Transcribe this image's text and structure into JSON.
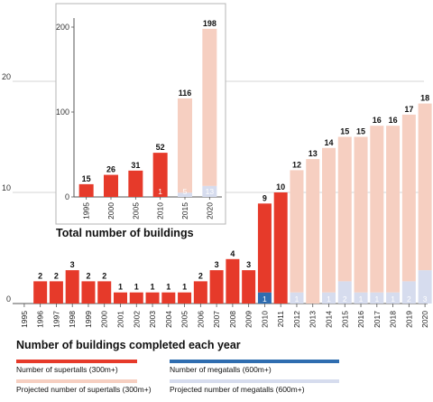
{
  "colors": {
    "supertall": "#e63a2a",
    "projected_supertall": "#f6cfc1",
    "megatall": "#2f6db0",
    "projected_megatall": "#d6dcee",
    "grid": "#c8c8c8"
  },
  "chart_data": [
    {
      "type": "bar",
      "caption": "Number of buildings completed each year",
      "ylim": [
        0,
        22
      ],
      "yticks": [
        0,
        10,
        20
      ],
      "grid": true,
      "x": [
        "1995",
        "1996",
        "1997",
        "1998",
        "1999",
        "2000",
        "2001",
        "2002",
        "2003",
        "2004",
        "2005",
        "2006",
        "2007",
        "2008",
        "2009",
        "2010",
        "2011",
        "2012",
        "2013",
        "2014",
        "2015",
        "2016",
        "2017",
        "2018",
        "2019",
        "2020"
      ],
      "series": [
        {
          "name": "Number of supertalls (300m+)",
          "values": [
            0,
            2,
            2,
            3,
            2,
            2,
            1,
            1,
            1,
            1,
            1,
            2,
            3,
            4,
            3,
            9,
            10,
            0,
            0,
            0,
            0,
            0,
            0,
            0,
            0,
            0
          ]
        },
        {
          "name": "Projected number of supertalls (300m+)",
          "values": [
            0,
            0,
            0,
            0,
            0,
            0,
            0,
            0,
            0,
            0,
            0,
            0,
            0,
            0,
            0,
            0,
            0,
            12,
            13,
            14,
            15,
            15,
            16,
            16,
            17,
            18
          ]
        },
        {
          "name": "Number of megatalls (600m+)",
          "values": [
            0,
            0,
            0,
            0,
            0,
            0,
            0,
            0,
            0,
            0,
            0,
            0,
            0,
            0,
            0,
            1,
            0,
            0,
            0,
            0,
            0,
            0,
            0,
            0,
            0,
            0
          ]
        },
        {
          "name": "Projected number of megatalls (600m+)",
          "values": [
            0,
            0,
            0,
            0,
            0,
            0,
            0,
            0,
            0,
            0,
            0,
            0,
            0,
            0,
            0,
            0,
            0,
            1,
            0,
            1,
            2,
            1,
            1,
            1,
            2,
            3
          ]
        }
      ],
      "top_labels": [
        "",
        "2",
        "2",
        "3",
        "2",
        "2",
        "1",
        "1",
        "1",
        "1",
        "1",
        "2",
        "3",
        "4",
        "3",
        "9",
        "10",
        "12",
        "13",
        "14",
        "15",
        "15",
        "16",
        "16",
        "17",
        "18"
      ],
      "inner_labels": [
        "",
        "",
        "",
        "",
        "",
        "",
        "",
        "",
        "",
        "",
        "",
        "",
        "",
        "",
        "",
        "1",
        "",
        "1",
        "",
        "1",
        "2",
        "1",
        "1",
        "1",
        "2",
        "3"
      ]
    },
    {
      "type": "bar",
      "caption": "Total number of buildings",
      "ylim": [
        0,
        210
      ],
      "yticks": [
        0,
        100,
        200
      ],
      "grid": false,
      "categories": [
        "1995",
        "2000",
        "2005",
        "2010",
        "2015",
        "2020"
      ],
      "series": [
        {
          "name": "Number of supertalls (300m+)",
          "values": [
            15,
            26,
            31,
            52,
            0,
            0
          ]
        },
        {
          "name": "Projected number of supertalls (300m+)",
          "values": [
            0,
            0,
            0,
            0,
            116,
            198
          ]
        },
        {
          "name": "Number of megatalls (600m+)",
          "values": [
            0,
            0,
            0,
            1,
            0,
            0
          ]
        },
        {
          "name": "Projected number of megatalls (600m+)",
          "values": [
            0,
            0,
            0,
            0,
            5,
            13
          ]
        }
      ],
      "top_labels": [
        "15",
        "26",
        "31",
        "52",
        "116",
        "198"
      ],
      "inner_labels": [
        "",
        "",
        "",
        "1",
        "5",
        "13"
      ]
    }
  ],
  "legend": [
    {
      "label": "Number of supertalls (300m+)",
      "color_key": "supertall"
    },
    {
      "label": "Number of megatalls (600m+)",
      "color_key": "megatall"
    },
    {
      "label": "Projected number of supertalls (300m+)",
      "color_key": "projected_supertall"
    },
    {
      "label": "Projected number of megatalls (600m+)",
      "color_key": "projected_megatall"
    }
  ]
}
